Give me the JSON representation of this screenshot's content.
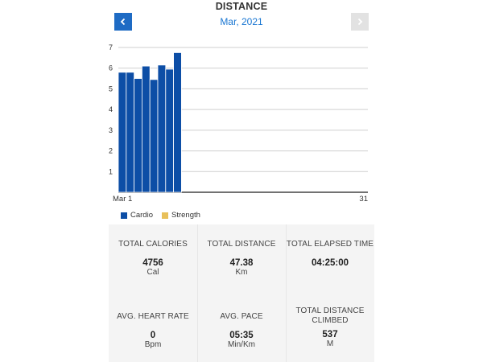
{
  "header": {
    "title": "DISTANCE",
    "month": "Mar, 2021",
    "prev_icon": "chevron-left-icon",
    "next_icon": "chevron-right-icon"
  },
  "colors": {
    "accent": "#1976d2",
    "prev_button": "#1e6bc4",
    "next_button_disabled": "#e2e2e2",
    "cardio": "#0d4ea6",
    "strength": "#e8c05a",
    "stats_bg": "#f4f4f4"
  },
  "chart_data": {
    "type": "bar",
    "x_start_label": "Mar 1",
    "x_end_label": "31",
    "days": 31,
    "ylim": [
      0,
      7
    ],
    "yticks": [
      1,
      2,
      3,
      4,
      5,
      6,
      7
    ],
    "grid": true,
    "legend_position": "bottom-left",
    "series": [
      {
        "name": "Cardio",
        "color": "#0d4ea6",
        "values": [
          5.8,
          5.8,
          5.5,
          6.1,
          5.45,
          6.15,
          5.95,
          6.75
        ]
      },
      {
        "name": "Strength",
        "color": "#e8c05a",
        "values": []
      }
    ]
  },
  "stats": [
    {
      "label": "TOTAL CALORIES",
      "value": "4756",
      "unit": "Cal"
    },
    {
      "label": "TOTAL DISTANCE",
      "value": "47.38",
      "unit": "Km"
    },
    {
      "label": "TOTAL ELAPSED TIME",
      "value": "04:25:00",
      "unit": ""
    },
    {
      "label": "AVG. HEART RATE",
      "value": "0",
      "unit": "Bpm"
    },
    {
      "label": "AVG. PACE",
      "value": "05:35",
      "unit": "Min/Km"
    },
    {
      "label": "TOTAL DISTANCE CLIMBED",
      "value": "537",
      "unit": "M"
    }
  ]
}
